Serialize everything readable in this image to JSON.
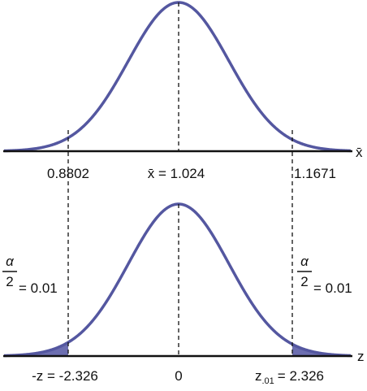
{
  "top": {
    "axis_label": "x̄",
    "left_label": "0.8802",
    "center_label": "x̄ = 1.024",
    "right_label": "1.1671"
  },
  "bottom": {
    "axis_label": "z",
    "left_label": "-z = -2.326",
    "center_label": "0",
    "right_label": {
      "base": "z",
      "sub": ".01",
      "rest": "= 2.326"
    },
    "left_tail": {
      "numerator": "α",
      "denominator": "2",
      "rest": "= 0.01"
    },
    "right_tail": {
      "numerator": "α",
      "denominator": "2",
      "rest": "= 0.01"
    }
  }
}
